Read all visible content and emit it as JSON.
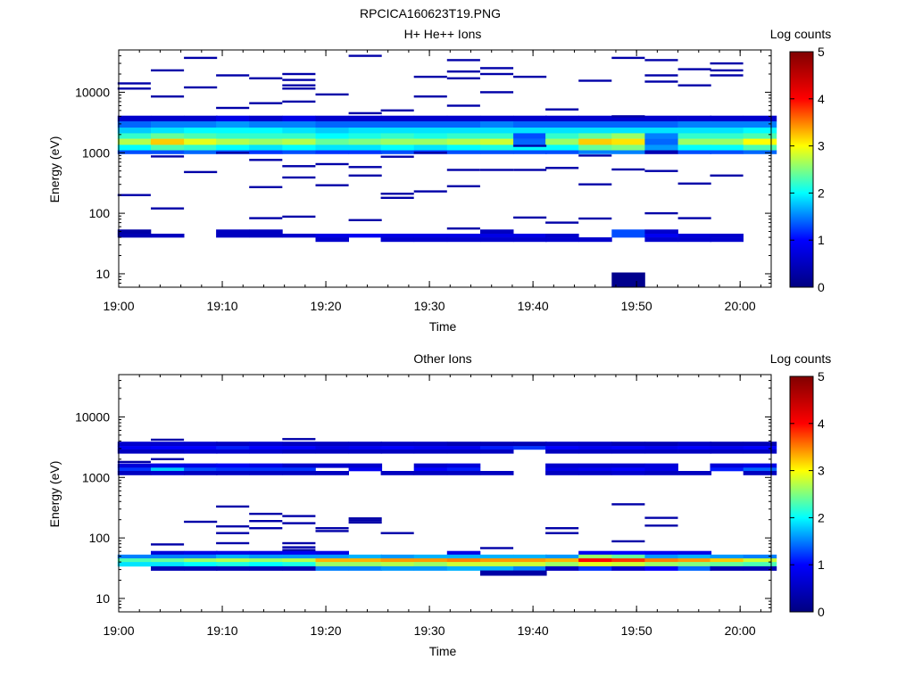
{
  "figure_title": "RPCICA160623T19.PNG",
  "colors": {
    "colormap": [
      "#000080",
      "#0000ff",
      "#00ffff",
      "#ffff00",
      "#ff0000",
      "#800000"
    ]
  },
  "chart_data": [
    {
      "type": "heatmap",
      "title": "H+ He++ Ions",
      "xlabel": "Time",
      "ylabel": "Energy (eV)",
      "x_scale": "time",
      "y_scale": "log",
      "xlim": [
        "19:00",
        "20:03"
      ],
      "ylim": [
        6,
        50000
      ],
      "x_ticks": [
        "19:00",
        "19:10",
        "19:20",
        "19:30",
        "19:40",
        "19:50",
        "20:00"
      ],
      "y_ticks": [
        "10",
        "100",
        "1000",
        "10000"
      ],
      "colorbar": {
        "label": "Log counts",
        "min": 0,
        "max": 5,
        "ticks": [
          "0",
          "1",
          "2",
          "3",
          "4",
          "5"
        ]
      },
      "time_bins": [
        "19:01.5",
        "19:04.7",
        "19:07.9",
        "19:11.0",
        "19:14.2",
        "19:17.4",
        "19:20.6",
        "19:23.8",
        "19:26.9",
        "19:30.1",
        "19:33.3",
        "19:36.5",
        "19:39.7",
        "19:42.8",
        "19:46.0",
        "19:49.2",
        "19:52.4",
        "19:55.6",
        "19:58.7",
        "20:01.9"
      ],
      "bands": [
        {
          "e_low": 3300,
          "e_high": 4100,
          "values": [
            0.6,
            0.6,
            0.6,
            0.8,
            0.6,
            0.8,
            0.6,
            0.6,
            0.6,
            0.6,
            0.6,
            0.6,
            0.6,
            0.6,
            0.6,
            0.6,
            0.6,
            0.6,
            0.6,
            0.6
          ]
        },
        {
          "e_low": 2600,
          "e_high": 3300,
          "values": [
            1.4,
            1.5,
            1.5,
            1.6,
            1.5,
            1.5,
            1.4,
            1.4,
            1.4,
            1.4,
            1.4,
            1.5,
            1.4,
            1.4,
            1.4,
            1.4,
            1.4,
            1.5,
            1.5,
            1.5
          ]
        },
        {
          "e_low": 2100,
          "e_high": 2600,
          "values": [
            1.8,
            1.9,
            2.0,
            2.0,
            2.0,
            1.9,
            1.8,
            1.9,
            1.9,
            1.9,
            1.9,
            1.9,
            1.9,
            1.9,
            1.9,
            1.9,
            1.9,
            1.9,
            1.9,
            2.0
          ]
        },
        {
          "e_low": 1700,
          "e_high": 2100,
          "values": [
            2.2,
            2.4,
            2.3,
            2.2,
            2.2,
            2.2,
            2.0,
            2.1,
            2.2,
            2.1,
            2.2,
            2.2,
            1.3,
            2.2,
            2.4,
            2.6,
            1.5,
            2.2,
            2.2,
            2.3
          ]
        },
        {
          "e_low": 1350,
          "e_high": 1700,
          "values": [
            2.7,
            3.2,
            2.9,
            2.7,
            2.6,
            2.7,
            2.4,
            2.5,
            2.6,
            2.6,
            2.7,
            2.8,
            1.4,
            2.6,
            3.2,
            3.1,
            1.4,
            2.6,
            2.6,
            3.0
          ]
        },
        {
          "e_low": 1100,
          "e_high": 1350,
          "values": [
            2.0,
            2.3,
            2.2,
            2.0,
            1.9,
            2.0,
            1.9,
            1.9,
            2.0,
            1.9,
            2.0,
            2.1,
            2.0,
            2.0,
            2.4,
            2.5,
            1.6,
            2.0,
            2.0,
            2.3
          ]
        },
        {
          "e_low": 960,
          "e_high": 1100,
          "values": [
            1.3,
            1.3,
            1.4,
            1.3,
            1.2,
            1.3,
            1.2,
            1.2,
            1.3,
            1.2,
            1.3,
            1.3,
            1.3,
            1.3,
            1.5,
            1.5,
            0.4,
            1.3,
            1.3,
            1.4
          ]
        },
        {
          "e_low": 46,
          "e_high": 54,
          "values": [
            0.3,
            null,
            null,
            0.5,
            0.5,
            null,
            null,
            null,
            null,
            null,
            null,
            0.5,
            null,
            null,
            null,
            1.3,
            0.6,
            null,
            null,
            null
          ]
        },
        {
          "e_low": 40,
          "e_high": 46,
          "values": [
            0.4,
            0.5,
            null,
            0.5,
            0.5,
            0.6,
            0.8,
            0.9,
            0.8,
            0.8,
            0.8,
            0.8,
            0.8,
            0.6,
            null,
            1.3,
            0.9,
            0.7,
            0.6,
            null
          ]
        },
        {
          "e_low": 34,
          "e_high": 40,
          "values": [
            null,
            null,
            null,
            null,
            null,
            null,
            0.6,
            null,
            0.6,
            0.6,
            0.6,
            0.6,
            0.6,
            0.6,
            0.6,
            null,
            0.6,
            0.6,
            0.6,
            null
          ]
        },
        {
          "e_low": 6,
          "e_high": 10.5,
          "values": [
            null,
            null,
            null,
            null,
            null,
            null,
            null,
            null,
            null,
            null,
            null,
            null,
            null,
            null,
            null,
            0.1,
            null,
            null,
            null,
            null
          ]
        }
      ],
      "lines": [
        {
          "t": 0,
          "e": [
            14000,
            11500,
            200
          ]
        },
        {
          "t": 1,
          "e": [
            23000,
            8500,
            870,
            120
          ]
        },
        {
          "t": 2,
          "e": [
            37000,
            12000,
            480
          ]
        },
        {
          "t": 3,
          "e": [
            19000,
            5500,
            1000
          ]
        },
        {
          "t": 4,
          "e": [
            17000,
            6600,
            760,
            270,
            83
          ]
        },
        {
          "t": 5,
          "e": [
            20000,
            16000,
            13000,
            11500,
            7000,
            600,
            390,
            88
          ]
        },
        {
          "t": 6,
          "e": [
            9200,
            650,
            290
          ]
        },
        {
          "t": 7,
          "e": [
            40000,
            4500,
            580,
            420,
            77
          ]
        },
        {
          "t": 8,
          "e": [
            5000,
            860,
            210,
            180
          ]
        },
        {
          "t": 9,
          "e": [
            18000,
            8500,
            1000,
            230
          ]
        },
        {
          "t": 10,
          "e": [
            34000,
            22000,
            17000,
            6000,
            520,
            280,
            56
          ]
        },
        {
          "t": 11,
          "e": [
            25000,
            20000,
            10000,
            520
          ]
        },
        {
          "t": 12,
          "e": [
            18000,
            1300,
            520,
            85
          ]
        },
        {
          "t": 13,
          "e": [
            5200,
            560,
            70
          ]
        },
        {
          "t": 14,
          "e": [
            15500,
            900,
            300,
            82
          ]
        },
        {
          "t": 15,
          "e": [
            37000,
            4000,
            530
          ]
        },
        {
          "t": 16,
          "e": [
            34000,
            19000,
            15000,
            500,
            100
          ]
        },
        {
          "t": 17,
          "e": [
            24000,
            13000,
            310,
            83
          ]
        },
        {
          "t": 18,
          "e": [
            30000,
            23000,
            19000,
            420
          ]
        }
      ]
    },
    {
      "type": "heatmap",
      "title": "Other Ions",
      "xlabel": "Time",
      "ylabel": "Energy (eV)",
      "x_scale": "time",
      "y_scale": "log",
      "xlim": [
        "19:00",
        "20:03"
      ],
      "ylim": [
        6,
        50000
      ],
      "x_ticks": [
        "19:00",
        "19:10",
        "19:20",
        "19:30",
        "19:40",
        "19:50",
        "20:00"
      ],
      "y_ticks": [
        "10",
        "100",
        "1000",
        "10000"
      ],
      "colorbar": {
        "label": "Log counts",
        "min": 0,
        "max": 5,
        "ticks": [
          "0",
          "1",
          "2",
          "3",
          "4",
          "5"
        ]
      },
      "time_bins": [
        "19:01.5",
        "19:04.7",
        "19:07.9",
        "19:11.0",
        "19:14.2",
        "19:17.4",
        "19:20.6",
        "19:23.8",
        "19:26.9",
        "19:30.1",
        "19:33.3",
        "19:36.5",
        "19:39.7",
        "19:42.8",
        "19:46.0",
        "19:49.2",
        "19:52.4",
        "19:55.6",
        "19:58.7",
        "20:01.9"
      ],
      "bands": [
        {
          "e_low": 3300,
          "e_high": 3900,
          "values": [
            0.6,
            0.6,
            0.6,
            0.5,
            0.6,
            0.5,
            0.5,
            0.5,
            0.5,
            0.5,
            0.4,
            0.4,
            0.4,
            0.5,
            0.5,
            0.4,
            0.4,
            0.5,
            0.4,
            0.4
          ]
        },
        {
          "e_low": 2900,
          "e_high": 3300,
          "values": [
            0.9,
            1.0,
            1.0,
            1.1,
            1.0,
            1.0,
            0.8,
            0.9,
            1.0,
            0.9,
            0.9,
            1.1,
            1.2,
            1.0,
            0.9,
            1.0,
            0.9,
            1.0,
            0.9,
            1.0
          ]
        },
        {
          "e_low": 2500,
          "e_high": 2900,
          "values": [
            0.5,
            0.5,
            0.6,
            0.6,
            0.6,
            0.5,
            0.5,
            0.5,
            0.5,
            0.5,
            0.5,
            0.5,
            null,
            0.5,
            0.5,
            0.5,
            0.5,
            0.5,
            0.5,
            0.5
          ]
        },
        {
          "e_low": 1450,
          "e_high": 1700,
          "values": [
            0.7,
            0.8,
            0.8,
            0.9,
            0.8,
            0.6,
            0.6,
            0.6,
            null,
            0.6,
            0.7,
            null,
            null,
            0.6,
            0.6,
            0.6,
            0.7,
            null,
            0.7,
            0.8
          ]
        },
        {
          "e_low": 1280,
          "e_high": 1450,
          "values": [
            1.2,
            1.8,
            1.3,
            1.2,
            1.2,
            1.2,
            null,
            0.9,
            null,
            1.0,
            1.1,
            null,
            null,
            0.8,
            0.9,
            1.0,
            0.8,
            null,
            1.1,
            1.4
          ]
        },
        {
          "e_low": 1100,
          "e_high": 1280,
          "values": [
            0.5,
            0.6,
            0.5,
            0.5,
            0.5,
            0.5,
            0.5,
            null,
            0.5,
            0.5,
            0.5,
            0.5,
            null,
            0.5,
            0.5,
            0.6,
            0.5,
            0.5,
            null,
            0.5
          ]
        },
        {
          "e_low": 53,
          "e_high": 61,
          "values": [
            null,
            0.7,
            0.8,
            0.8,
            0.8,
            0.9,
            0.8,
            null,
            null,
            null,
            0.8,
            null,
            null,
            null,
            0.9,
            1.0,
            0.9,
            0.8,
            null,
            null
          ]
        },
        {
          "e_low": 46,
          "e_high": 53,
          "values": [
            1.5,
            1.5,
            1.5,
            1.7,
            1.6,
            1.6,
            1.6,
            1.7,
            1.6,
            1.7,
            1.7,
            1.7,
            1.7,
            1.6,
            2.6,
            2.4,
            1.6,
            1.7,
            1.6,
            1.5
          ]
        },
        {
          "e_low": 40,
          "e_high": 46,
          "values": [
            2.3,
            2.4,
            2.6,
            2.7,
            2.6,
            2.7,
            3.3,
            3.3,
            3.4,
            3.4,
            3.5,
            3.4,
            3.4,
            3.3,
            4.0,
            3.8,
            3.5,
            3.4,
            3.2,
            2.8
          ]
        },
        {
          "e_low": 34,
          "e_high": 40,
          "values": [
            1.9,
            1.9,
            2.0,
            2.1,
            2.0,
            2.1,
            2.6,
            2.6,
            2.7,
            2.6,
            2.8,
            2.8,
            2.8,
            2.6,
            2.9,
            2.8,
            2.6,
            2.5,
            2.4,
            2.3
          ]
        },
        {
          "e_low": 29,
          "e_high": 34,
          "values": [
            null,
            0.4,
            0.4,
            0.4,
            0.4,
            0.4,
            1.5,
            1.5,
            1.6,
            1.6,
            1.7,
            1.7,
            1.5,
            0.5,
            1.2,
            0.6,
            1.0,
            1.4,
            0.4,
            0.4
          ]
        },
        {
          "e_low": 24,
          "e_high": 29,
          "values": [
            null,
            null,
            null,
            null,
            null,
            null,
            null,
            null,
            null,
            null,
            null,
            0.3,
            0.3,
            null,
            null,
            null,
            null,
            null,
            null,
            null
          ]
        }
      ],
      "lines": [
        {
          "t": 0,
          "e": [
            1800
          ]
        },
        {
          "t": 1,
          "e": [
            4200,
            2000,
            78
          ]
        },
        {
          "t": 2,
          "e": [
            185
          ]
        },
        {
          "t": 3,
          "e": [
            330,
            155,
            120,
            82
          ]
        },
        {
          "t": 4,
          "e": [
            250,
            190,
            145
          ]
        },
        {
          "t": 5,
          "e": [
            4300,
            230,
            175,
            82,
            70,
            63
          ]
        },
        {
          "t": 6,
          "e": [
            145,
            130
          ]
        },
        {
          "t": 7,
          "e": [
            210,
            195,
            180
          ]
        },
        {
          "t": 8,
          "e": [
            120
          ]
        },
        {
          "t": 11,
          "e": [
            68
          ]
        },
        {
          "t": 13,
          "e": [
            145,
            120
          ]
        },
        {
          "t": 15,
          "e": [
            360,
            88
          ]
        },
        {
          "t": 16,
          "e": [
            215,
            160
          ]
        }
      ]
    }
  ]
}
